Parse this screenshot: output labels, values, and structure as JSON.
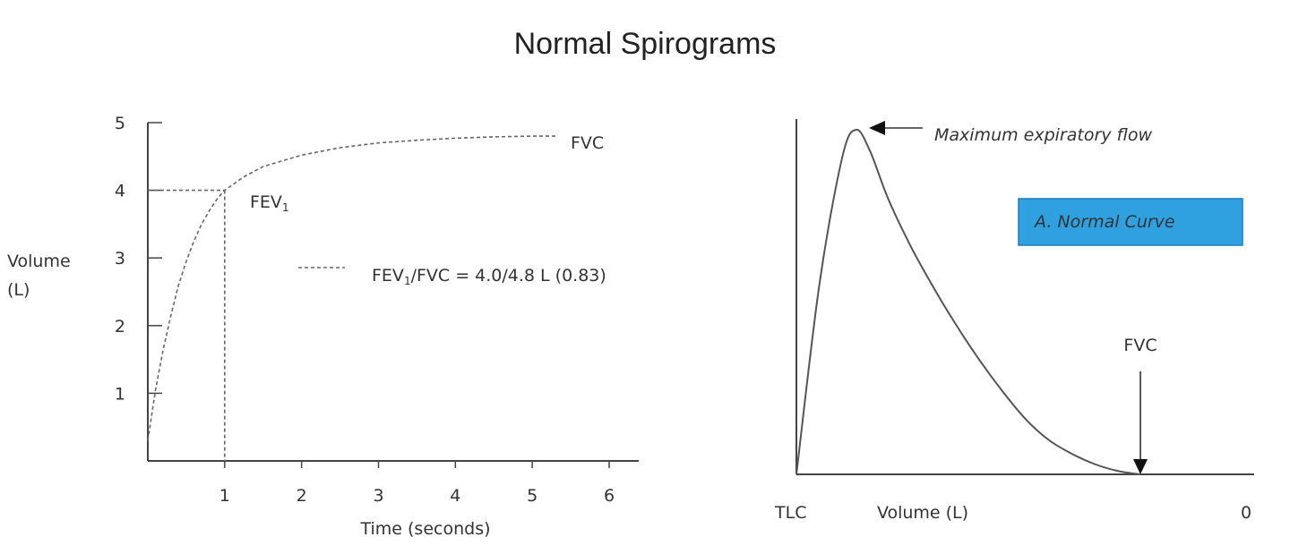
{
  "title": "Normal Spirograms",
  "chart_data": [
    {
      "type": "line",
      "xlabel": "Time (seconds)",
      "ylabel_line1": "Volume",
      "ylabel_line2": "(L)",
      "xlim": [
        0,
        6.5
      ],
      "ylim": [
        0,
        5
      ],
      "x_ticks": [
        1,
        2,
        3,
        4,
        5,
        6
      ],
      "y_ticks": [
        1,
        2,
        3,
        4,
        5
      ],
      "series": [
        {
          "style": "dashed",
          "x": [
            0,
            0.1,
            0.2,
            0.3,
            0.4,
            0.5,
            0.6,
            0.7,
            0.8,
            0.9,
            1.0,
            1.25,
            1.5,
            2,
            2.5,
            3,
            3.5,
            4,
            4.5,
            5,
            5.3
          ],
          "y": [
            0.3,
            1.05,
            1.65,
            2.15,
            2.6,
            2.95,
            3.25,
            3.5,
            3.7,
            3.87,
            4.0,
            4.2,
            4.35,
            4.52,
            4.63,
            4.7,
            4.74,
            4.77,
            4.79,
            4.8,
            4.8
          ]
        }
      ],
      "reference_point": {
        "x": 1,
        "y": 4
      },
      "annotations": {
        "fvc": "FVC",
        "fev1_main": "FEV",
        "fev1_sub": "1",
        "ratio_a": "FEV",
        "ratio_a_sub": "1",
        "ratio_b": "/FVC = 4.0/4.8 L (0.83)"
      }
    },
    {
      "type": "line",
      "xlabel": "Volume (L)",
      "x_left_label": "TLC",
      "x_right_label": "0",
      "xlim": [
        0,
        1
      ],
      "ylim": [
        0,
        1
      ],
      "series": [
        {
          "style": "solid",
          "x": [
            0,
            0.05,
            0.1,
            0.13,
            0.16,
            0.2,
            0.25,
            0.3,
            0.35,
            0.4,
            0.45,
            0.5,
            0.55,
            0.6,
            0.65,
            0.7,
            0.75
          ],
          "y": [
            0,
            0.55,
            0.92,
            1.0,
            0.94,
            0.8,
            0.66,
            0.54,
            0.43,
            0.33,
            0.24,
            0.16,
            0.1,
            0.06,
            0.03,
            0.01,
            0
          ]
        }
      ],
      "annotations": {
        "peak": "Maximum expiratory flow",
        "fvc": "FVC",
        "box": "A. Normal Curve"
      },
      "colors": {
        "box_fill": "#2fa0e0",
        "box_border": "#1a7fc0"
      }
    }
  ]
}
